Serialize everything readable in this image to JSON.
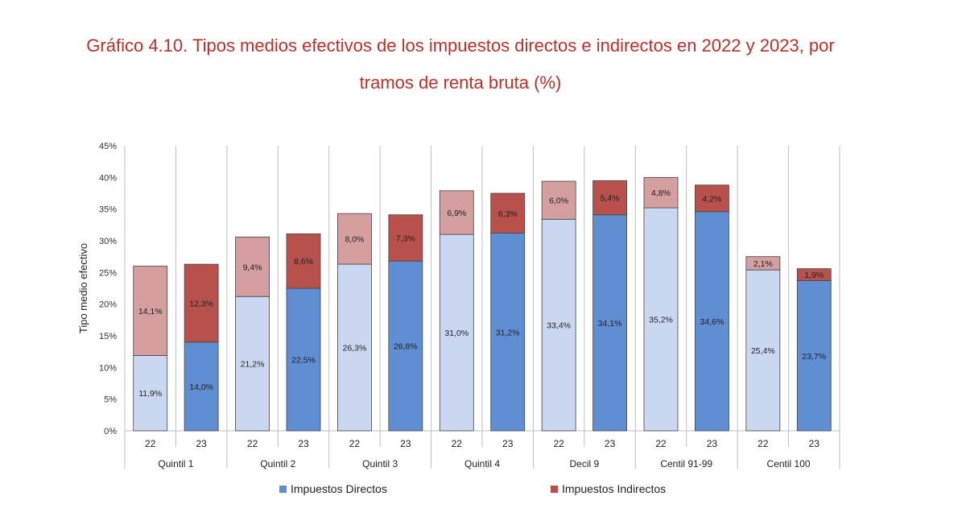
{
  "title_line1": "Gráfico 4.10. Tipos medios efectivos de los impuestos directos e indirectos en 2022 y 2023, por",
  "title_line2": "tramos de renta bruta (%)",
  "chart_data": {
    "type": "bar",
    "stacked": true,
    "ylabel": "Tipo medio efectivo",
    "ylim": [
      0,
      45
    ],
    "yticks": [
      "0%",
      "5%",
      "10%",
      "15%",
      "20%",
      "25%",
      "30%",
      "35%",
      "40%",
      "45%"
    ],
    "groups": [
      "Quintil 1",
      "Quintil 2",
      "Quintil 3",
      "Quintil 4",
      "Decil 9",
      "Centil 91-99",
      "Centil 100"
    ],
    "years": [
      "22",
      "23"
    ],
    "series": [
      {
        "name": "Impuestos Directos",
        "values": [
          11.9,
          14.0,
          21.2,
          22.5,
          26.3,
          26.8,
          31.0,
          31.2,
          33.4,
          34.1,
          35.2,
          34.6,
          25.4,
          23.7
        ],
        "labels": [
          "11,9%",
          "14,0%",
          "21,2%",
          "22,5%",
          "26,3%",
          "26,8%",
          "31,0%",
          "31,2%",
          "33,4%",
          "34,1%",
          "35,2%",
          "34,6%",
          "25,4%",
          "23,7%"
        ]
      },
      {
        "name": "Impuestos Indirectos",
        "values": [
          14.1,
          12.3,
          9.4,
          8.6,
          8.0,
          7.3,
          6.9,
          6.3,
          6.0,
          5.4,
          4.8,
          4.2,
          2.1,
          1.9
        ],
        "labels": [
          "14,1%",
          "12,3%",
          "9,4%",
          "8,6%",
          "8,0%",
          "7,3%",
          "6,9%",
          "6,3%",
          "6,0%",
          "5,4%",
          "4,8%",
          "4,2%",
          "2,1%",
          "1,9%"
        ]
      }
    ],
    "colors": {
      "direct_2022": "#c9d8f0",
      "direct_2023": "#5f8ed3",
      "indirect_2022": "#d49f9e",
      "indirect_2023": "#b8514c",
      "legend_direct": "#5f8ed3",
      "legend_indirect": "#b8514c"
    },
    "legend_position": "bottom",
    "grid": false
  }
}
